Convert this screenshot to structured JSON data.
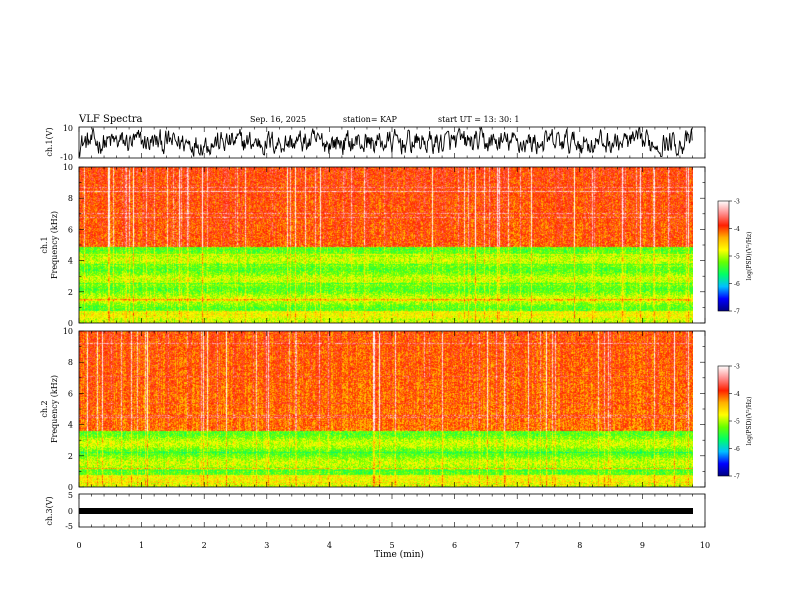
{
  "chart_data": {
    "type": "heatmap",
    "title": "VLF Spectra",
    "date": "Sep. 16, 2025",
    "station": "station= KAP",
    "start_ut": "start  UT =   13: 30: 1",
    "xlabel": "Time  (min)",
    "xlim": [
      0,
      10
    ],
    "x_ticks": [
      "0",
      "1",
      "2",
      "3",
      "4",
      "5",
      "6",
      "7",
      "8",
      "9",
      "10"
    ],
    "data_end_min": 9.8,
    "panels": [
      {
        "id": "ch1v",
        "ylabel": "ch.1(V)",
        "ylim": [
          -10,
          10
        ],
        "y_ticks": [
          "10",
          "-10"
        ],
        "kind": "waveform",
        "amplitude_v": 9.5
      },
      {
        "id": "ch1",
        "ylabel_top": "ch.1",
        "ylabel": "Frequency  (kHz)",
        "ylim": [
          0,
          10
        ],
        "y_ticks": [
          "0",
          "2",
          "4",
          "6",
          "8",
          "10"
        ],
        "kind": "spectrogram",
        "green_band_khz": [
          0.8,
          4.9
        ]
      },
      {
        "id": "ch2",
        "ylabel_top": "ch.2",
        "ylabel": "Frequency  (kHz)",
        "ylim": [
          0,
          10
        ],
        "y_ticks": [
          "0",
          "2",
          "4",
          "6",
          "8",
          "10"
        ],
        "kind": "spectrogram",
        "green_band_khz": [
          0.8,
          3.6
        ]
      },
      {
        "id": "ch3v",
        "ylabel": "ch.3(V)",
        "ylim": [
          -5,
          5
        ],
        "y_ticks": [
          "5",
          "0",
          "-5"
        ],
        "kind": "constant",
        "value_v": 0
      }
    ],
    "colorbar": {
      "label": "log(PSD)(V²/Hz)",
      "range": [
        -7,
        -3
      ],
      "ticks": [
        "-3",
        "-4",
        "-5",
        "-6",
        "-7"
      ],
      "colors": [
        "#000080",
        "#0000ff",
        "#00c0ff",
        "#00ff66",
        "#66ff00",
        "#ffff00",
        "#ffb000",
        "#ff2000",
        "#ff9090",
        "#ffffff"
      ]
    }
  }
}
